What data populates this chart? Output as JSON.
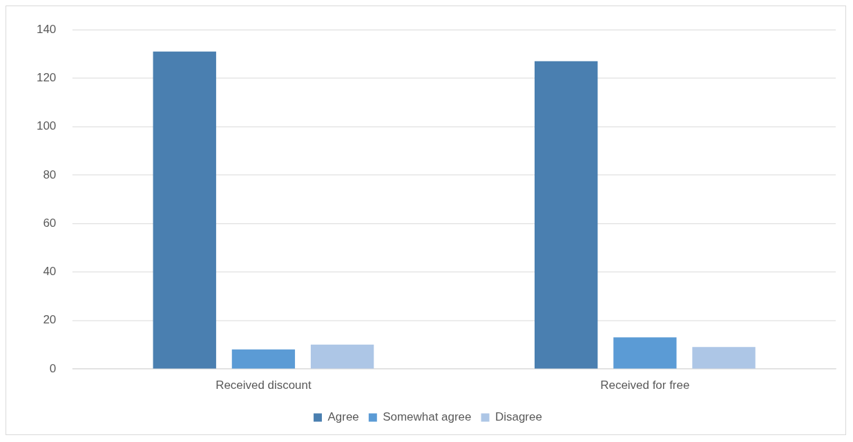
{
  "chart_data": {
    "type": "bar",
    "categories": [
      "Received discount",
      "Received for free"
    ],
    "series": [
      {
        "name": "Agree",
        "color": "#4a7fb0",
        "values": [
          131,
          127
        ]
      },
      {
        "name": "Somewhat agree",
        "color": "#5b9bd5",
        "values": [
          8,
          13
        ]
      },
      {
        "name": "Disagree",
        "color": "#adc6e6",
        "values": [
          10,
          9
        ]
      }
    ],
    "ylim": [
      0,
      140
    ],
    "yticks": [
      0,
      20,
      40,
      60,
      80,
      100,
      120,
      140
    ],
    "grid": "y",
    "legend": "bottom"
  }
}
